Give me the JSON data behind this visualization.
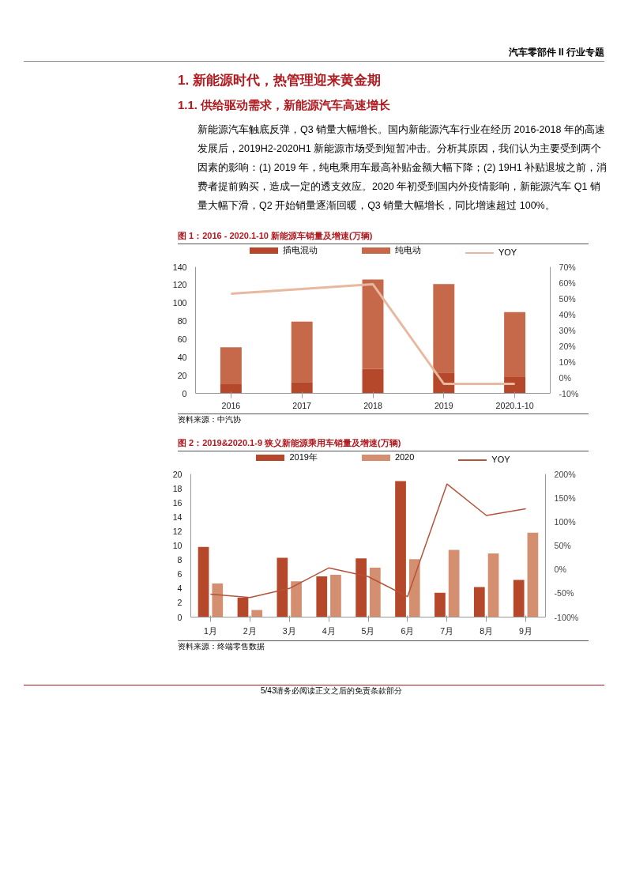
{
  "chart_data": [
    {
      "type": "bar",
      "stacked": true,
      "title": "图 1：2016 - 2020.1-10 新能源车销量及增速(万辆)",
      "annotations": [
        "资料来源：中汽协",
        "汽车零部件 II 行业专题",
        "1. 新能源时代，热管理迎来黄金期",
        "1.1. 供给驱动需求，新能源汽车高速增长",
        "新能源汽车触底反弹，Q3 销量大幅增长。国内新能源汽车行业在经历 2016-2018 年的高速发展后，2019H2-2020H1 新能源市场受到短暂冲击。分析其原因，我们认为主要受到两个因素的影响：(1) 2019 年，纯电乘用车最高补贴金额大幅下降；(2) 19H1 补贴退坡之前，消费者提前购买，造成一定的透支效应。2020 年初受到国内外疫情影响，新能源汽车 Q1 销量大幅下滑，Q2 开始销量逐渐回暖，Q3 销量大幅增长，同比增速超过 100%。"
      ],
      "categories": [
        "2016",
        "2017",
        "2018",
        "2019",
        "2020.1-10"
      ],
      "series": [
        {
          "name": "插电混动",
          "color": "#b5472a",
          "values": [
            10,
            12.5,
            27,
            23,
            18
          ]
        },
        {
          "name": "纯电动",
          "color": "#c5694a",
          "values": [
            41,
            67,
            99,
            98,
            72
          ]
        },
        {
          "name": "YOY",
          "type": "line",
          "axis": "y2",
          "color": "#e8b9a0",
          "values": [
            53,
            56,
            59,
            -4,
            -4
          ]
        }
      ],
      "ylim": [
        0,
        140
      ],
      "yticks": [
        0,
        20,
        40,
        60,
        80,
        100,
        120,
        140
      ],
      "y2lim": [
        -10,
        70
      ],
      "y2ticks": [
        {
          "value": -10,
          "label": "-10%"
        },
        {
          "value": 0,
          "label": "0%"
        },
        {
          "value": 10,
          "label": "10%"
        },
        {
          "value": 20,
          "label": "20%"
        },
        {
          "value": 30,
          "label": "30%"
        },
        {
          "value": 40,
          "label": "40%"
        },
        {
          "value": 50,
          "label": "50%"
        },
        {
          "value": 60,
          "label": "60%"
        },
        {
          "value": 70,
          "label": "70%"
        }
      ],
      "legend": "top"
    },
    {
      "type": "bar",
      "title": "图 2：2019&2020.1-9 狭义新能源乘用车销量及增速(万辆)",
      "annotations": [
        "资料来源：终端零售数据",
        "5/43",
        "请务必阅读正文之后的免责条款部分"
      ],
      "categories": [
        "1月",
        "2月",
        "3月",
        "4月",
        "5月",
        "6月",
        "7月",
        "8月",
        "9月"
      ],
      "series": [
        {
          "name": "2019年",
          "color": "#b5472a",
          "values": [
            9.8,
            2.7,
            8.3,
            5.7,
            8.2,
            19.0,
            3.4,
            4.2,
            5.2
          ]
        },
        {
          "name": "2020",
          "color": "#d38f6f",
          "values": [
            4.7,
            1.0,
            5.0,
            5.9,
            6.9,
            8.1,
            9.4,
            8.9,
            11.8
          ]
        },
        {
          "name": "YOY",
          "type": "line",
          "axis": "y2",
          "color": "#b5533a",
          "values": [
            -52,
            -59,
            -40,
            3,
            -15,
            -57,
            179,
            113,
            127
          ]
        }
      ],
      "ylim": [
        0,
        20
      ],
      "yticks": [
        0,
        2,
        4,
        6,
        8,
        10,
        12,
        14,
        16,
        18,
        20
      ],
      "y2lim": [
        -100,
        200
      ],
      "y2ticks": [
        {
          "value": -100,
          "label": "-100%"
        },
        {
          "value": -50,
          "label": "-50%"
        },
        {
          "value": 0,
          "label": "0%"
        },
        {
          "value": 50,
          "label": "50%"
        },
        {
          "value": 100,
          "label": "100%"
        },
        {
          "value": 150,
          "label": "150%"
        },
        {
          "value": 200,
          "label": "200%"
        }
      ],
      "legend": "top"
    }
  ]
}
